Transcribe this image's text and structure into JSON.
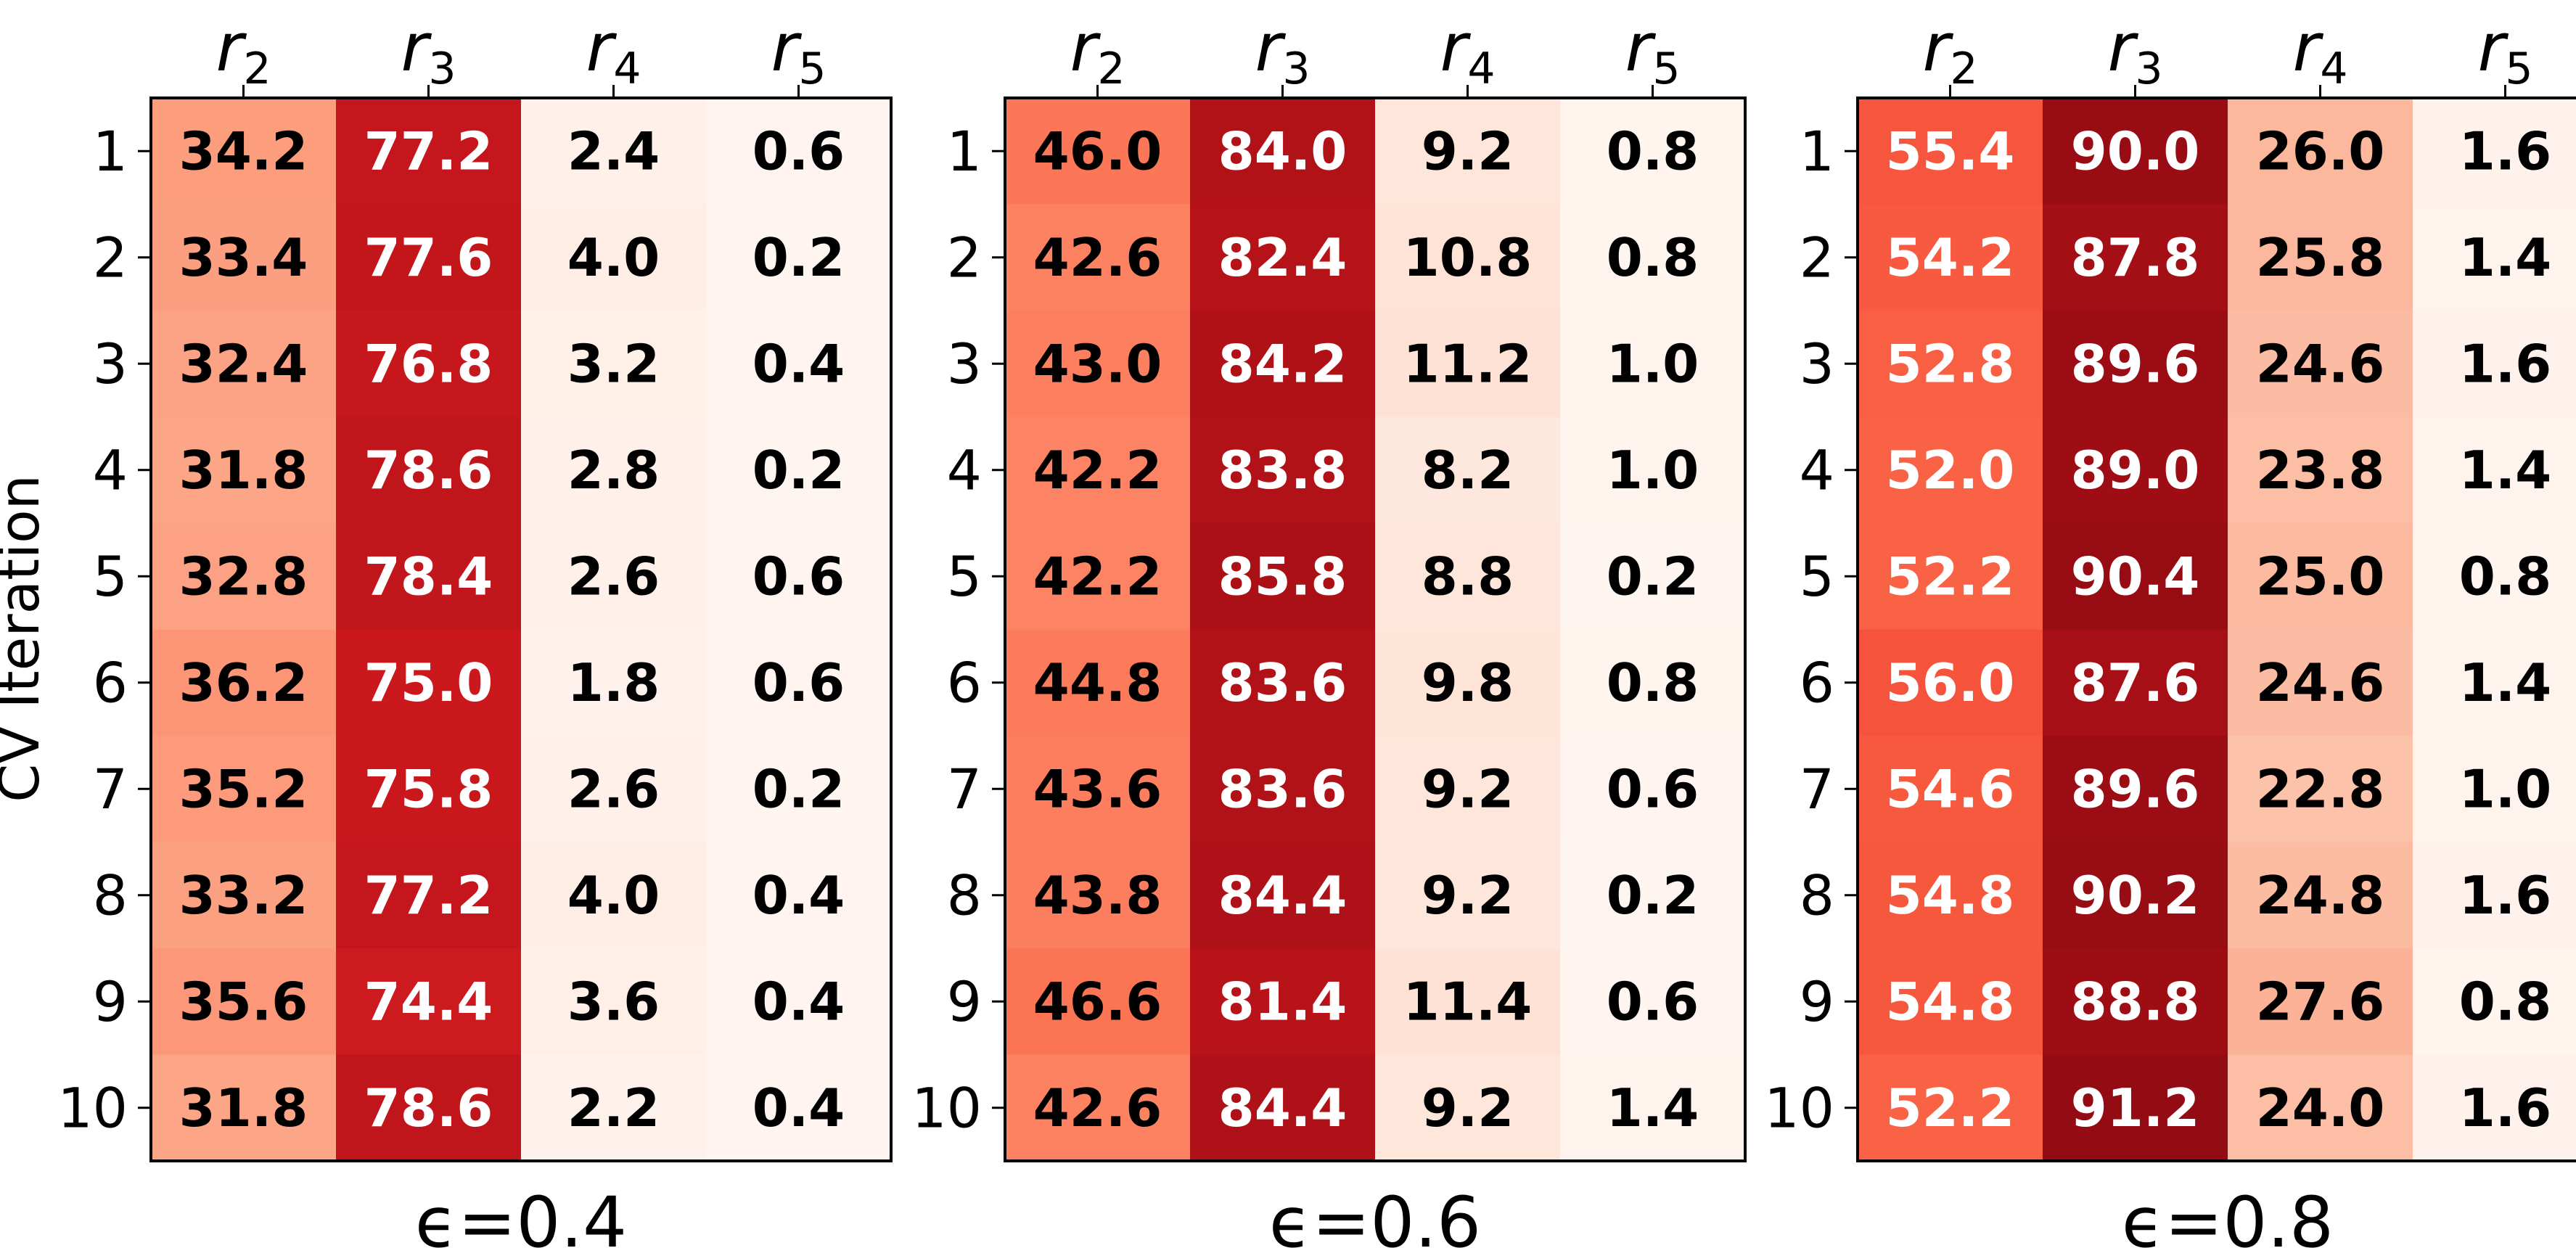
{
  "figure": {
    "ylabel": "CV Iteration",
    "value_scale": [
      0,
      100
    ],
    "colormap": "Reds"
  },
  "chart_data": [
    {
      "type": "heatmap",
      "title": "ϵ=0.4",
      "xlabel": "ϵ=0.4",
      "ylabel": "CV Iteration",
      "columns": [
        {
          "base": "r",
          "sub": "2"
        },
        {
          "base": "r",
          "sub": "3"
        },
        {
          "base": "r",
          "sub": "4"
        },
        {
          "base": "r",
          "sub": "5"
        }
      ],
      "rows": [
        "1",
        "2",
        "3",
        "4",
        "5",
        "6",
        "7",
        "8",
        "9",
        "10"
      ],
      "values": [
        [
          34.2,
          77.2,
          2.4,
          0.6
        ],
        [
          33.4,
          77.6,
          4.0,
          0.2
        ],
        [
          32.4,
          76.8,
          3.2,
          0.4
        ],
        [
          31.8,
          78.6,
          2.8,
          0.2
        ],
        [
          32.8,
          78.4,
          2.6,
          0.6
        ],
        [
          36.2,
          75.0,
          1.8,
          0.6
        ],
        [
          35.2,
          75.8,
          2.6,
          0.2
        ],
        [
          33.2,
          77.2,
          4.0,
          0.4
        ],
        [
          35.6,
          74.4,
          3.6,
          0.4
        ],
        [
          31.8,
          78.6,
          2.2,
          0.4
        ]
      ]
    },
    {
      "type": "heatmap",
      "title": "ϵ=0.6",
      "xlabel": "ϵ=0.6",
      "ylabel": "",
      "columns": [
        {
          "base": "r",
          "sub": "2"
        },
        {
          "base": "r",
          "sub": "3"
        },
        {
          "base": "r",
          "sub": "4"
        },
        {
          "base": "r",
          "sub": "5"
        }
      ],
      "rows": [
        "1",
        "2",
        "3",
        "4",
        "5",
        "6",
        "7",
        "8",
        "9",
        "10"
      ],
      "values": [
        [
          46.0,
          84.0,
          9.2,
          0.8
        ],
        [
          42.6,
          82.4,
          10.8,
          0.8
        ],
        [
          43.0,
          84.2,
          11.2,
          1.0
        ],
        [
          42.2,
          83.8,
          8.2,
          1.0
        ],
        [
          42.2,
          85.8,
          8.8,
          0.2
        ],
        [
          44.8,
          83.6,
          9.8,
          0.8
        ],
        [
          43.6,
          83.6,
          9.2,
          0.6
        ],
        [
          43.8,
          84.4,
          9.2,
          0.2
        ],
        [
          46.6,
          81.4,
          11.4,
          0.6
        ],
        [
          42.6,
          84.4,
          9.2,
          1.4
        ]
      ]
    },
    {
      "type": "heatmap",
      "title": "ϵ=0.8",
      "xlabel": "ϵ=0.8",
      "ylabel": "",
      "columns": [
        {
          "base": "r",
          "sub": "2"
        },
        {
          "base": "r",
          "sub": "3"
        },
        {
          "base": "r",
          "sub": "4"
        },
        {
          "base": "r",
          "sub": "5"
        }
      ],
      "rows": [
        "1",
        "2",
        "3",
        "4",
        "5",
        "6",
        "7",
        "8",
        "9",
        "10"
      ],
      "values": [
        [
          55.4,
          90.0,
          26.0,
          1.6
        ],
        [
          54.2,
          87.8,
          25.8,
          1.4
        ],
        [
          52.8,
          89.6,
          24.6,
          1.6
        ],
        [
          52.0,
          89.0,
          23.8,
          1.4
        ],
        [
          52.2,
          90.4,
          25.0,
          0.8
        ],
        [
          56.0,
          87.6,
          24.6,
          1.4
        ],
        [
          54.6,
          89.6,
          22.8,
          1.0
        ],
        [
          54.8,
          90.2,
          24.8,
          1.6
        ],
        [
          54.8,
          88.8,
          27.6,
          0.8
        ],
        [
          52.2,
          91.2,
          24.0,
          1.6
        ]
      ]
    }
  ]
}
